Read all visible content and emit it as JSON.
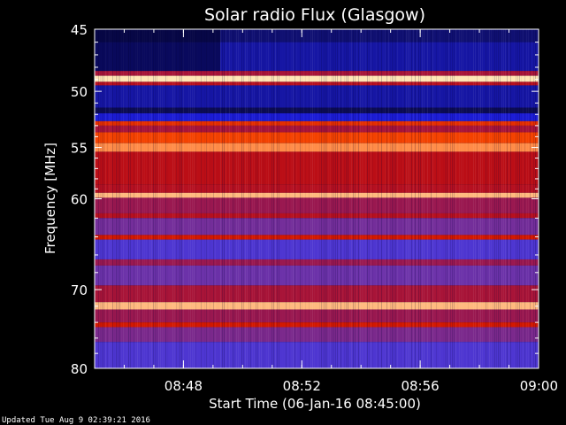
{
  "chart_data": {
    "type": "heatmap",
    "title": "Solar radio Flux (Glasgow)",
    "xlabel": "Start Time (06-Jan-16 08:45:00)",
    "ylabel": "Frequency [MHz]",
    "x_range": [
      "08:45",
      "09:00"
    ],
    "x_ticks": [
      "08:48",
      "08:52",
      "08:56",
      "09:00"
    ],
    "x_tick_minutes": [
      48,
      52,
      56,
      60
    ],
    "x_start_minute": 45,
    "x_end_minute": 60,
    "ylim": [
      45,
      80
    ],
    "y_scale": "log",
    "y_ticks": [
      45,
      50,
      55,
      60,
      70,
      80
    ],
    "y_tick_labels": [
      "45",
      "50",
      "55",
      "60",
      "70",
      "80"
    ],
    "bands": [
      {
        "from": 45,
        "to": 46.0,
        "level": 0.05
      },
      {
        "from": 46.0,
        "to": 48.3,
        "level": 0.1
      },
      {
        "from": 48.3,
        "to": 48.7,
        "level": 0.55
      },
      {
        "from": 48.7,
        "to": 49.2,
        "level": 1.0
      },
      {
        "from": 49.2,
        "to": 49.5,
        "level": 0.6
      },
      {
        "from": 49.5,
        "to": 51.4,
        "level": 0.1
      },
      {
        "from": 51.4,
        "to": 51.9,
        "level": 0.02
      },
      {
        "from": 51.9,
        "to": 52.6,
        "level": 0.15
      },
      {
        "from": 52.6,
        "to": 53.0,
        "level": 0.75
      },
      {
        "from": 53.0,
        "to": 53.6,
        "level": 0.55
      },
      {
        "from": 53.6,
        "to": 54.6,
        "level": 0.8
      },
      {
        "from": 54.6,
        "to": 55.4,
        "level": 0.9
      },
      {
        "from": 55.4,
        "to": 58.6,
        "level": 0.62
      },
      {
        "from": 58.6,
        "to": 59.4,
        "level": 0.6
      },
      {
        "from": 59.4,
        "to": 59.9,
        "level": 0.95
      },
      {
        "from": 59.9,
        "to": 61.5,
        "level": 0.5
      },
      {
        "from": 61.5,
        "to": 62.0,
        "level": 0.6
      },
      {
        "from": 62.0,
        "to": 63.8,
        "level": 0.4
      },
      {
        "from": 63.8,
        "to": 64.3,
        "level": 0.7
      },
      {
        "from": 64.3,
        "to": 66.5,
        "level": 0.3
      },
      {
        "from": 66.5,
        "to": 67.2,
        "level": 0.5
      },
      {
        "from": 67.2,
        "to": 69.5,
        "level": 0.38
      },
      {
        "from": 69.5,
        "to": 71.5,
        "level": 0.55
      },
      {
        "from": 71.5,
        "to": 72.4,
        "level": 0.95
      },
      {
        "from": 72.4,
        "to": 74.0,
        "level": 0.5
      },
      {
        "from": 74.0,
        "to": 74.6,
        "level": 0.7
      },
      {
        "from": 74.6,
        "to": 76.5,
        "level": 0.42
      },
      {
        "from": 76.5,
        "to": 80,
        "level": 0.3
      }
    ],
    "colorscale": [
      "#0a0a40",
      "#1e1ee6",
      "#5a3ccc",
      "#9a1850",
      "#c80a00",
      "#ff5000",
      "#ffe6b4"
    ]
  },
  "footer": {
    "updated": "Updated Tue Aug  9 02:39:21 2016"
  }
}
